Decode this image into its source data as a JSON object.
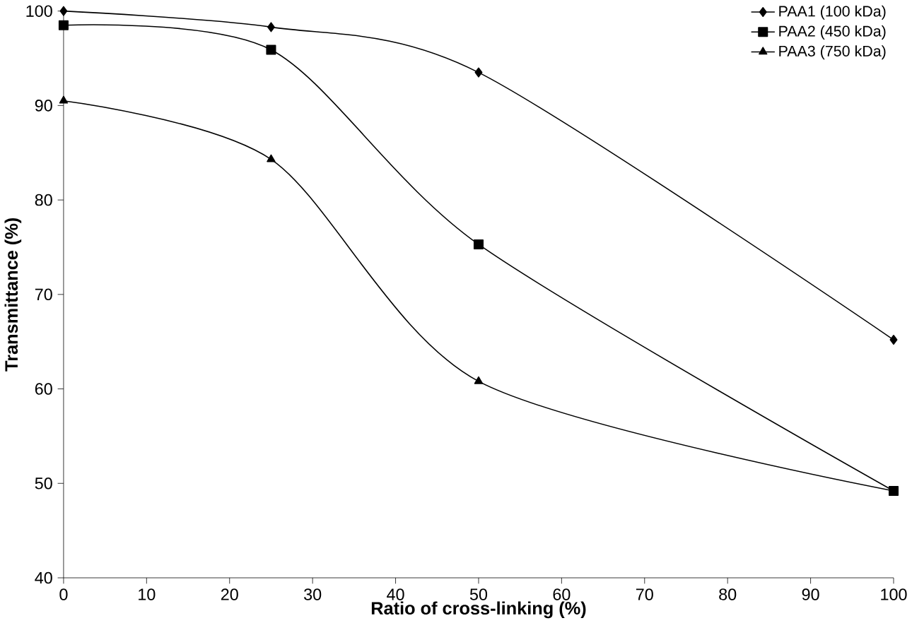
{
  "chart_data": {
    "type": "line",
    "xlabel": "Ratio of cross-linking (%)",
    "ylabel": "Transmittance (%)",
    "x": [
      0,
      25,
      50,
      100
    ],
    "series": [
      {
        "name": "PAA1 (100 kDa)",
        "color": "#000000",
        "marker": "diamond",
        "values": [
          100,
          98.3,
          93.5,
          65.2
        ]
      },
      {
        "name": "PAA2 (450 kDa)",
        "color": "#000000",
        "marker": "square",
        "values": [
          98.5,
          95.9,
          75.3,
          49.2
        ]
      },
      {
        "name": "PAA3 (750 kDa)",
        "color": "#000000",
        "marker": "triangle",
        "values": [
          90.5,
          84.3,
          60.8,
          49.2
        ]
      }
    ],
    "xlim": [
      0,
      100
    ],
    "xticks": [
      0,
      10,
      20,
      30,
      40,
      50,
      60,
      70,
      80,
      90,
      100
    ],
    "ylim": [
      40,
      100
    ],
    "yticks": [
      40,
      50,
      60,
      70,
      80,
      90,
      100
    ],
    "grid": false,
    "legend": "top right",
    "line_style": "solid"
  }
}
